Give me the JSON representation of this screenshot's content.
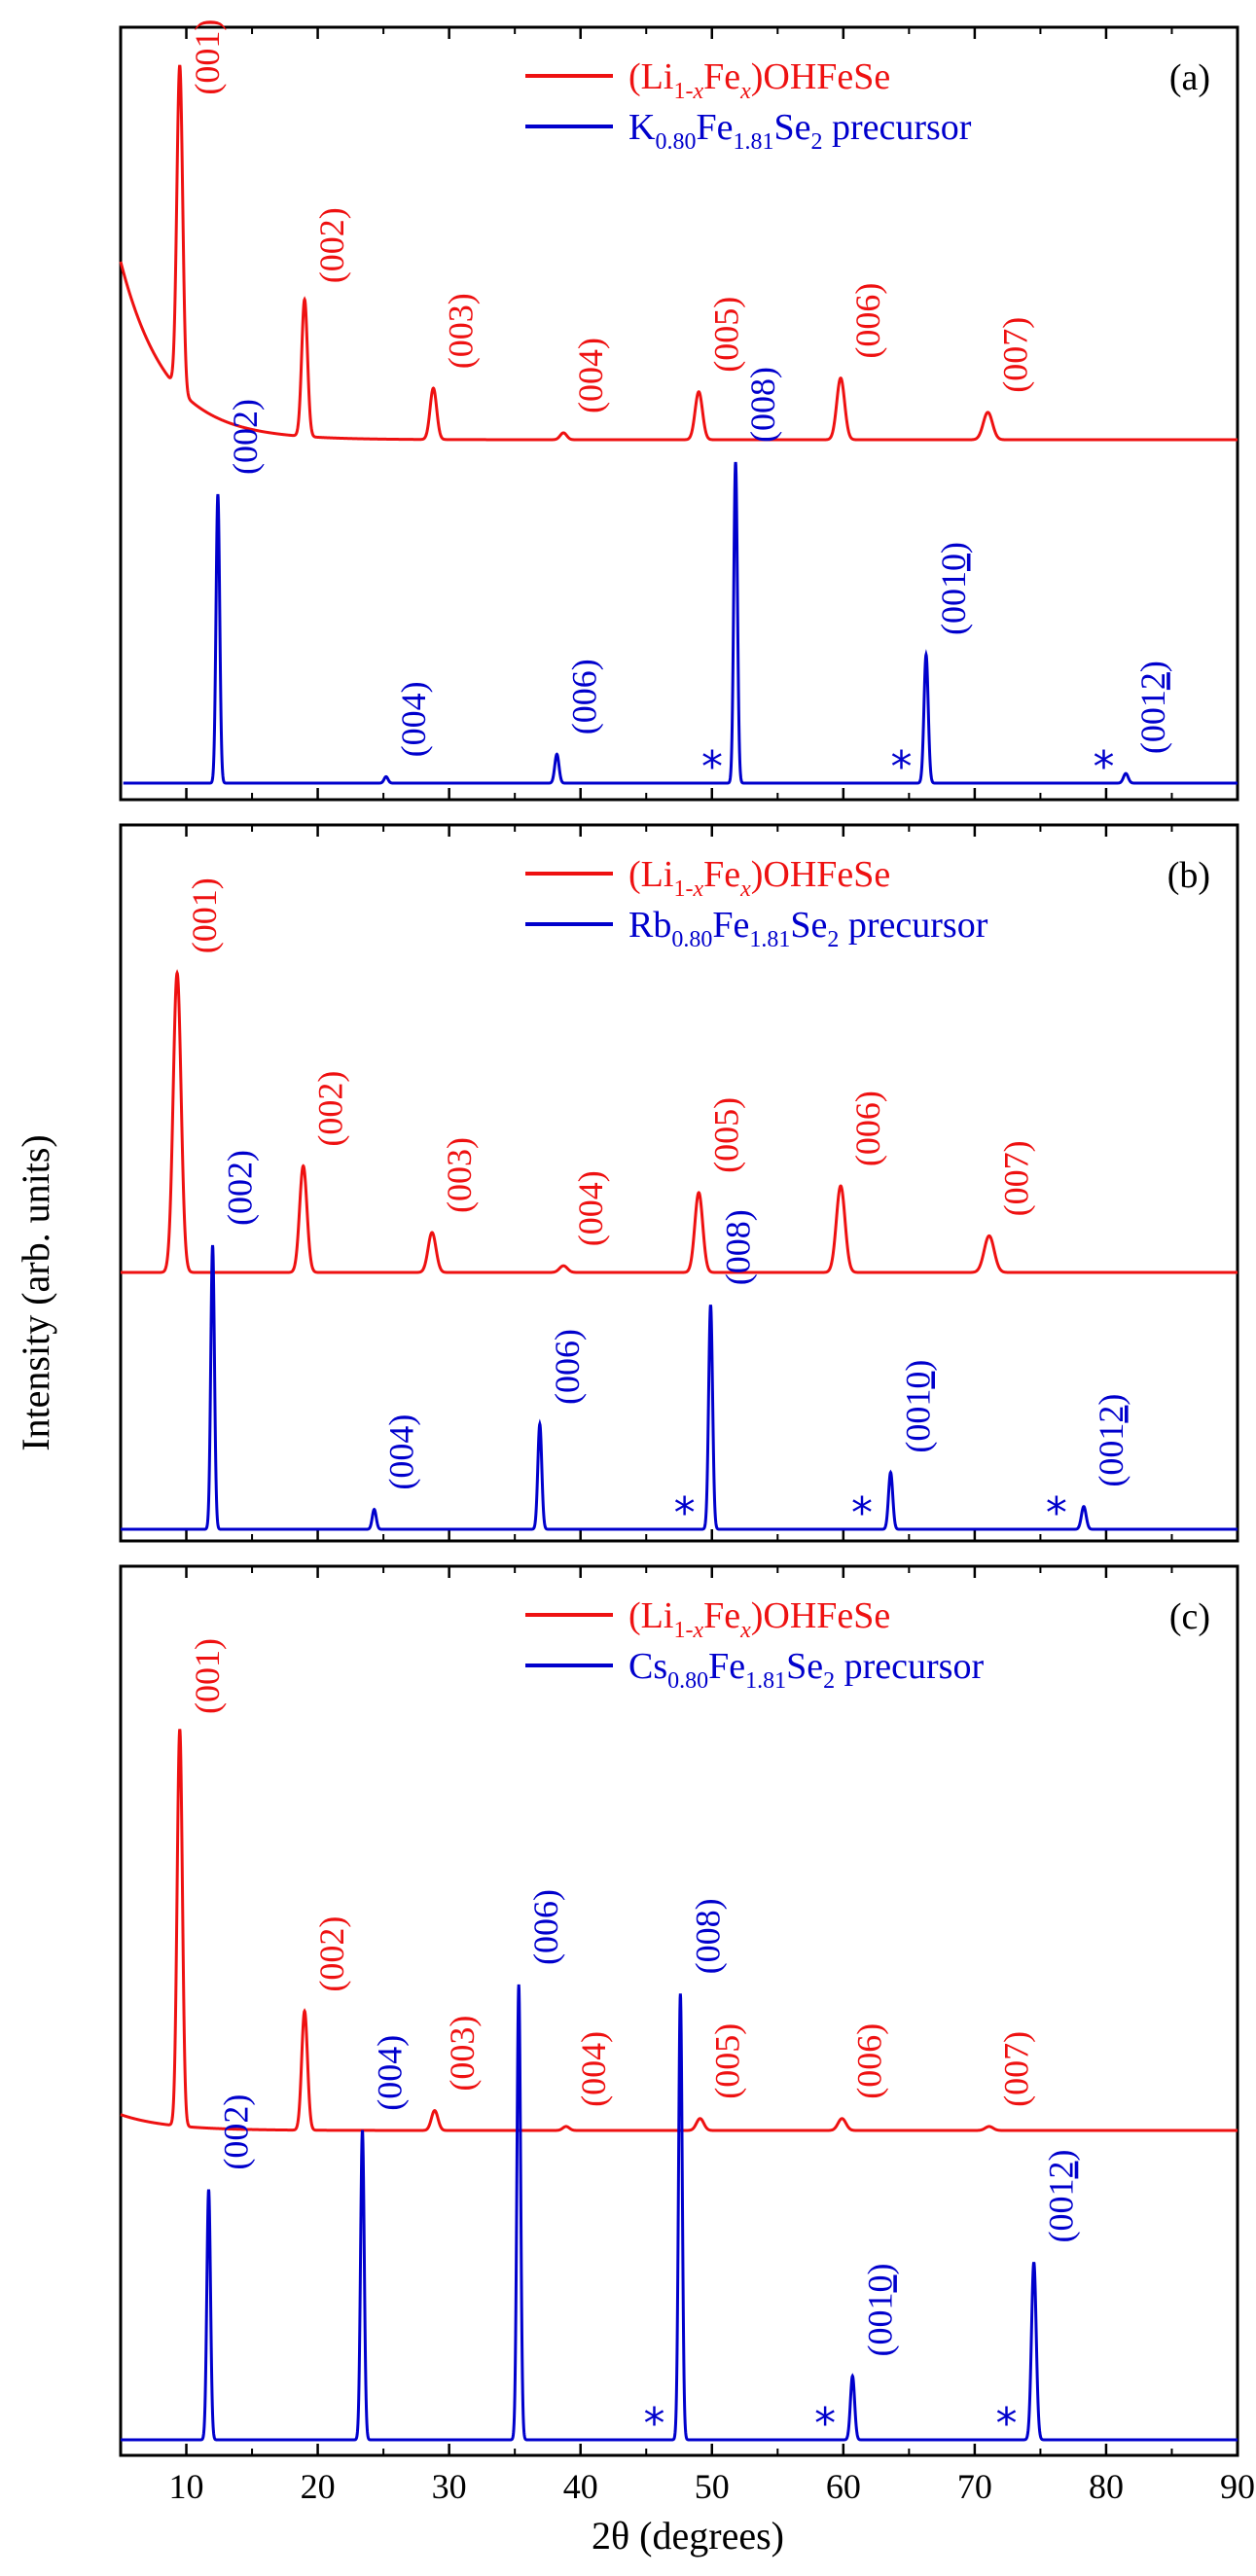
{
  "chart_data": {
    "type": "line",
    "xlabel": "2θ (degrees)",
    "ylabel": "Intensity (arb. units)",
    "xlim": [
      5,
      90
    ],
    "xticks": [
      10,
      20,
      30,
      40,
      50,
      60,
      70,
      80,
      90
    ],
    "xtick_labels": [
      "10",
      "20",
      "30",
      "40",
      "50",
      "60",
      "70",
      "80",
      "90"
    ],
    "yunits": "arbitrary",
    "panels": [
      {
        "label": "(a)",
        "series": [
          {
            "name": "(Li1-xFex)OHFeSe",
            "legend": {
              "pre": "(Li",
              "sub1": "1-",
              "subx1": "x",
              "mid": "Fe",
              "subx2": "x",
              "post": ")OHFeSe"
            },
            "color": "#ee1111",
            "baseline": 0.52,
            "tail": 0.46,
            "start_x": 5,
            "peaks": [
              {
                "x": 9.5,
                "h": 0.95,
                "w": 0.22,
                "label": "(001)"
              },
              {
                "x": 19.0,
                "h": 0.4,
                "w": 0.22,
                "label": "(002)"
              },
              {
                "x": 28.8,
                "h": 0.15,
                "w": 0.25,
                "label": "(003)"
              },
              {
                "x": 38.7,
                "h": 0.02,
                "w": 0.25,
                "label": "(004)"
              },
              {
                "x": 49.0,
                "h": 0.14,
                "w": 0.28,
                "label": "(005)"
              },
              {
                "x": 59.8,
                "h": 0.18,
                "w": 0.3,
                "label": "(006)"
              },
              {
                "x": 71.0,
                "h": 0.08,
                "w": 0.35,
                "label": "(007)"
              }
            ]
          },
          {
            "name": "K0.80Fe1.81Se2 precursor",
            "legend": {
              "pre": "K",
              "sub1": "0.80",
              "mid": "Fe",
              "sub2": "1.81",
              "mid2": "Se",
              "sub3": "2",
              "post": " precursor"
            },
            "color": "#0000cc",
            "baseline": 0.0,
            "tail": 0.0,
            "start_x": 5.2,
            "peaks": [
              {
                "x": 12.4,
                "h": 0.9,
                "w": 0.14,
                "label": "(002)"
              },
              {
                "x": 25.2,
                "h": 0.02,
                "w": 0.15,
                "label": "(004)"
              },
              {
                "x": 38.2,
                "h": 0.09,
                "w": 0.16,
                "label": "(006)"
              },
              {
                "x": 51.8,
                "h": 1.0,
                "w": 0.14,
                "label": "(008)"
              },
              {
                "x": 66.3,
                "h": 0.4,
                "w": 0.16,
                "label": "(0010)"
              },
              {
                "x": 81.5,
                "h": 0.03,
                "w": 0.18,
                "label": "(0012)"
              }
            ],
            "impurity_marker": "*",
            "impurities": [
              51.2,
              65.6,
              81.0
            ]
          }
        ]
      },
      {
        "label": "(b)",
        "series": [
          {
            "name": "(Li1-xFex)OHFeSe",
            "legend": {
              "pre": "(Li",
              "sub1": "1-",
              "subx1": "x",
              "mid": "Fe",
              "subx2": "x",
              "post": ")OHFeSe"
            },
            "color": "#ee1111",
            "baseline": 0.0,
            "tail": 0.0,
            "start_x": 5,
            "peaks": [
              {
                "x": 9.3,
                "h": 0.9,
                "w": 0.3,
                "label": "(001)"
              },
              {
                "x": 18.9,
                "h": 0.32,
                "w": 0.28,
                "label": "(002)"
              },
              {
                "x": 28.7,
                "h": 0.12,
                "w": 0.3,
                "label": "(003)"
              },
              {
                "x": 38.7,
                "h": 0.02,
                "w": 0.3,
                "label": "(004)"
              },
              {
                "x": 49.0,
                "h": 0.24,
                "w": 0.3,
                "label": "(005)"
              },
              {
                "x": 59.8,
                "h": 0.26,
                "w": 0.33,
                "label": "(006)"
              },
              {
                "x": 71.1,
                "h": 0.11,
                "w": 0.38,
                "label": "(007)"
              }
            ]
          },
          {
            "name": "Rb0.80Fe1.81Se2 precursor",
            "legend": {
              "pre": "Rb",
              "sub1": "0.80",
              "mid": "Fe",
              "sub2": "1.81",
              "mid2": "Se",
              "sub3": "2",
              "post": " precursor"
            },
            "color": "#0000cc",
            "baseline": 0.0,
            "tail": 0.0,
            "start_x": 5,
            "peaks": [
              {
                "x": 12.0,
                "h": 1.0,
                "w": 0.14,
                "label": "(002)"
              },
              {
                "x": 24.3,
                "h": 0.07,
                "w": 0.15,
                "label": "(004)"
              },
              {
                "x": 36.9,
                "h": 0.37,
                "w": 0.15,
                "label": "(006)"
              },
              {
                "x": 49.9,
                "h": 0.79,
                "w": 0.15,
                "label": "(008)"
              },
              {
                "x": 63.6,
                "h": 0.2,
                "w": 0.16,
                "label": "(0010)"
              },
              {
                "x": 78.3,
                "h": 0.08,
                "w": 0.18,
                "label": "(0012)"
              }
            ],
            "impurity_marker": "*",
            "impurities": [
              49.1,
              62.6,
              77.4
            ]
          }
        ]
      },
      {
        "label": "(c)",
        "series": [
          {
            "name": "(Li1-xFex)OHFeSe",
            "legend": {
              "pre": "(Li",
              "sub1": "1-",
              "subx1": "x",
              "mid": "Fe",
              "subx2": "x",
              "post": ")OHFeSe"
            },
            "color": "#ee1111",
            "baseline": 0.04,
            "tail": 0.0,
            "start_x": 5,
            "peaks": [
              {
                "x": 9.5,
                "h": 1.0,
                "w": 0.2,
                "label": "(001)"
              },
              {
                "x": 19.0,
                "h": 0.3,
                "w": 0.22,
                "label": "(002)"
              },
              {
                "x": 28.9,
                "h": 0.05,
                "w": 0.25,
                "label": "(003)"
              },
              {
                "x": 38.9,
                "h": 0.01,
                "w": 0.25,
                "label": "(004)"
              },
              {
                "x": 49.1,
                "h": 0.03,
                "w": 0.28,
                "label": "(005)"
              },
              {
                "x": 59.9,
                "h": 0.03,
                "w": 0.3,
                "label": "(006)"
              },
              {
                "x": 71.1,
                "h": 0.01,
                "w": 0.3,
                "label": "(007)"
              }
            ]
          },
          {
            "name": "Cs0.80Fe1.81Se2 precursor",
            "legend": {
              "pre": "Cs",
              "sub1": "0.80",
              "mid": "Fe",
              "sub2": "1.81",
              "mid2": "Se",
              "sub3": "2",
              "post": " precursor"
            },
            "color": "#0000cc",
            "baseline": 0.0,
            "tail": 0.0,
            "start_x": 5,
            "peaks": [
              {
                "x": 11.7,
                "h": 0.55,
                "w": 0.14,
                "label": "(002)"
              },
              {
                "x": 23.4,
                "h": 0.68,
                "w": 0.14,
                "label": "(004)"
              },
              {
                "x": 35.3,
                "h": 1.0,
                "w": 0.14,
                "label": "(006)"
              },
              {
                "x": 47.6,
                "h": 0.98,
                "w": 0.14,
                "label": "(008)"
              },
              {
                "x": 60.7,
                "h": 0.14,
                "w": 0.16,
                "label": "(0010)"
              },
              {
                "x": 74.5,
                "h": 0.39,
                "w": 0.18,
                "label": "(0012)"
              }
            ],
            "impurity_marker": "*",
            "impurities": [
              46.8,
              59.8,
              73.6
            ]
          }
        ]
      }
    ]
  }
}
